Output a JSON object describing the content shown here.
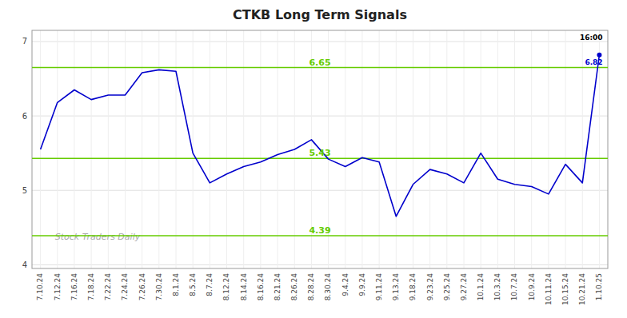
{
  "chart_data": {
    "type": "line",
    "title": "CTKB Long Term Signals",
    "categories": [
      "7.10.24",
      "7.12.24",
      "7.16.24",
      "7.18.24",
      "7.22.24",
      "7.24.24",
      "7.26.24",
      "7.30.24",
      "8.1.24",
      "8.5.24",
      "8.7.24",
      "8.12.24",
      "8.14.24",
      "8.16.24",
      "8.21.24",
      "8.26.24",
      "8.28.24",
      "8.30.24",
      "9.4.24",
      "9.9.24",
      "9.11.24",
      "9.13.24",
      "9.18.24",
      "9.23.24",
      "9.25.24",
      "9.27.24",
      "10.1.24",
      "10.3.24",
      "10.7.24",
      "10.9.24",
      "10.11.24",
      "10.15.24",
      "10.21.24",
      "1.10.25"
    ],
    "values": [
      5.55,
      6.18,
      6.35,
      6.22,
      6.28,
      6.28,
      6.58,
      6.62,
      6.6,
      5.5,
      5.1,
      5.22,
      5.32,
      5.38,
      5.48,
      5.55,
      5.68,
      5.42,
      5.32,
      5.44,
      5.38,
      4.65,
      5.08,
      5.28,
      5.22,
      5.1,
      5.5,
      5.15,
      5.08,
      5.05,
      4.95,
      5.35,
      5.1,
      6.82
    ],
    "color": "#0000cc",
    "ylim": [
      3.95,
      7.15
    ],
    "yticks": [
      4,
      5,
      6,
      7
    ],
    "grid": true,
    "reference_lines": [
      {
        "value": 6.65,
        "label": "6.65",
        "color": "#66cc00"
      },
      {
        "value": 5.43,
        "label": "5.43",
        "color": "#66cc00"
      },
      {
        "value": 4.39,
        "label": "4.39",
        "color": "#66cc00"
      }
    ],
    "annotations": [
      {
        "text": "16:00",
        "color": "#000000"
      },
      {
        "text": "6.82",
        "color": "#0000cc"
      }
    ],
    "watermark": "Stock Traders Daily"
  }
}
